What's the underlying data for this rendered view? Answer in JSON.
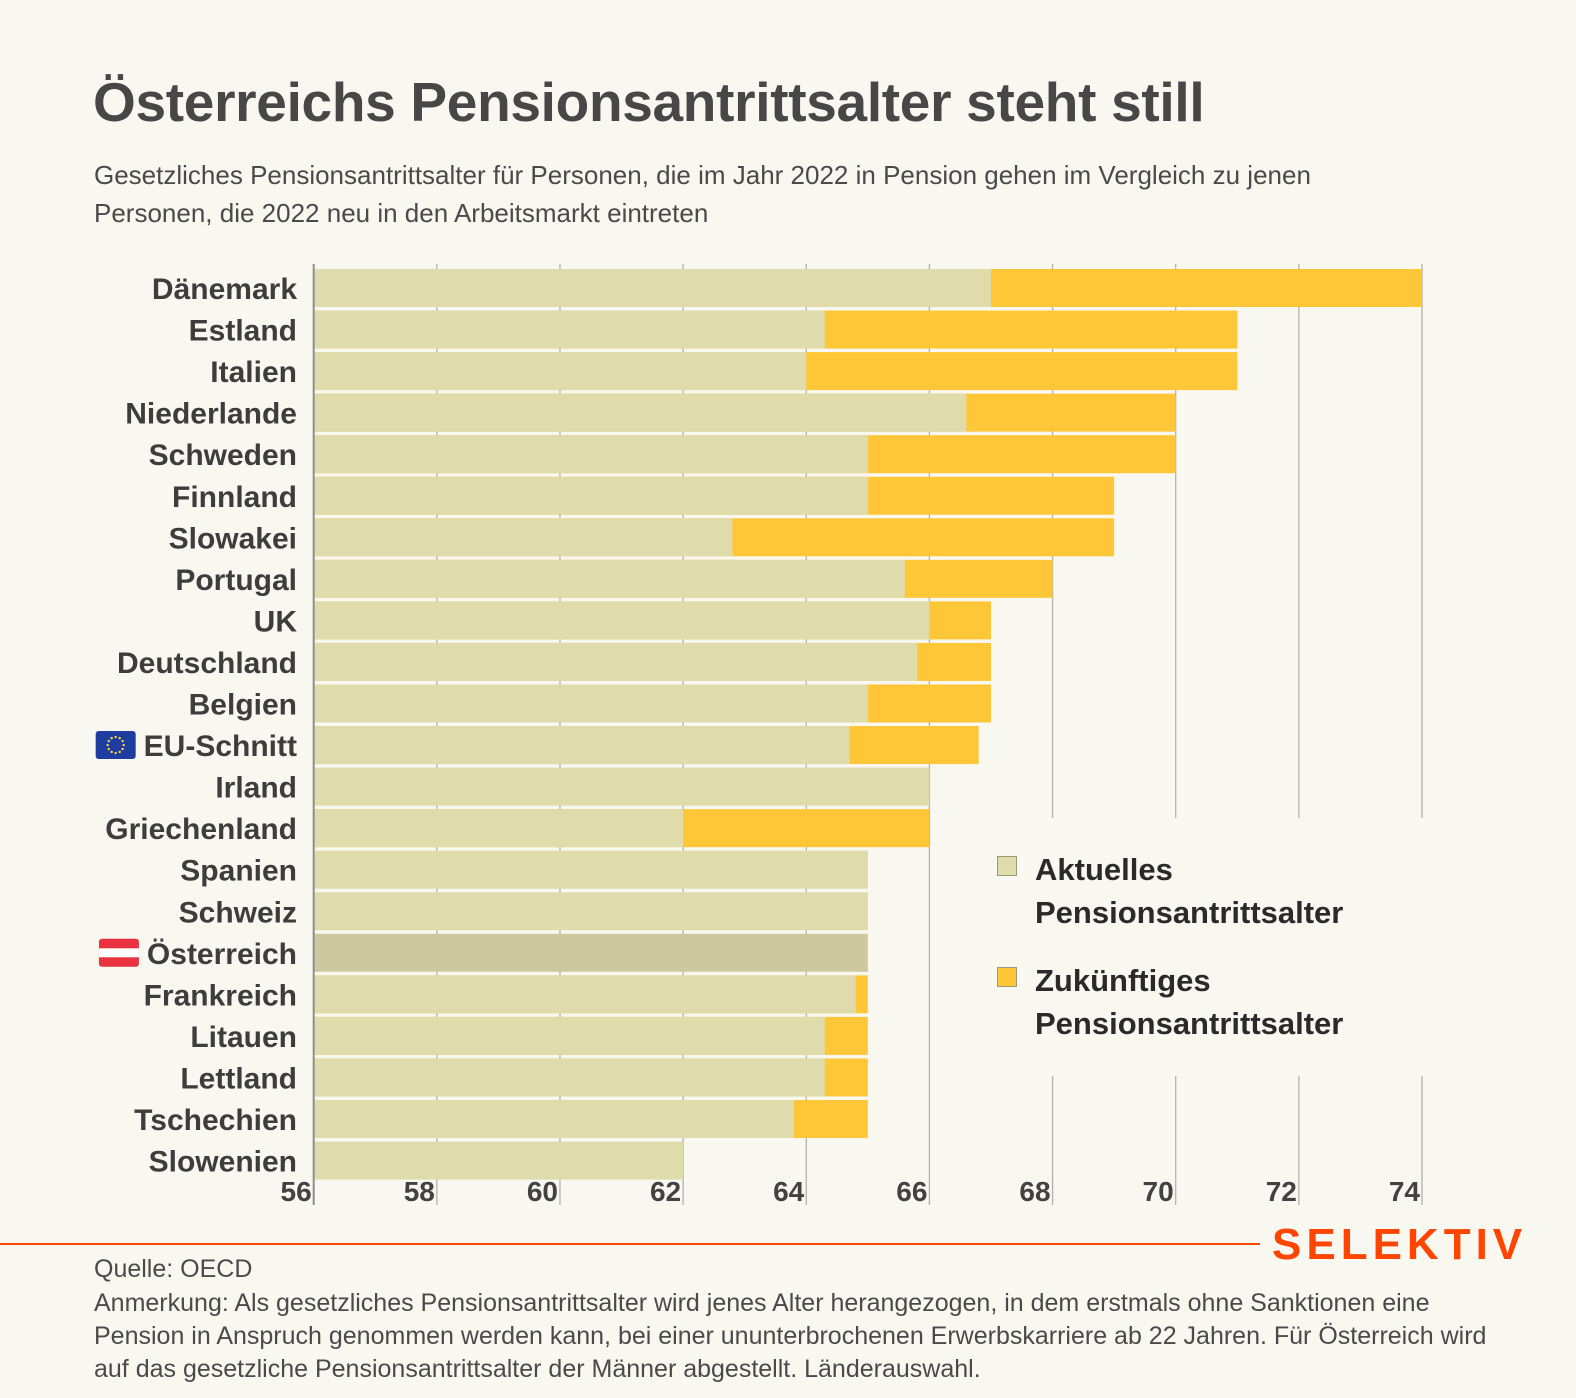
{
  "header": {
    "title": "Österreichs Pensionsantrittsalter steht still",
    "subtitle": "Gesetzliches Pensionsantrittsalter für Personen, die im Jahr 2022 in Pension gehen im Vergleich zu jenen Personen, die 2022 neu in den Arbeitsmarkt eintreten"
  },
  "chart_data": {
    "type": "bar",
    "orientation": "horizontal",
    "stacked": "overlay",
    "title": "Österreichs Pensionsantrittsalter steht still",
    "xlabel": "",
    "ylabel": "",
    "xlim": [
      56,
      74
    ],
    "x_ticks": [
      56,
      58,
      60,
      62,
      64,
      66,
      68,
      70,
      72,
      74
    ],
    "grid": "vertical",
    "legend_position": "bottom-right",
    "categories": [
      "Dänemark",
      "Estland",
      "Italien",
      "Niederlande",
      "Schweden",
      "Finnland",
      "Slowakei",
      "Portugal",
      "UK",
      "Deutschland",
      "Belgien",
      "EU-Schnitt",
      "Irland",
      "Griechenland",
      "Spanien",
      "Schweiz",
      "Österreich",
      "Frankreich",
      "Litauen",
      "Lettland",
      "Tschechien",
      "Slowenien"
    ],
    "flags": {
      "EU-Schnitt": "eu-flag-icon",
      "Österreich": "austria-flag-icon"
    },
    "highlight": "Österreich",
    "series": [
      {
        "name": "Aktuelles Pensionsantrittsalter",
        "color": "#dfdbab",
        "highlight_color": "#cdc89e",
        "values": [
          67.0,
          64.3,
          64.0,
          66.6,
          65.0,
          65.0,
          62.8,
          65.6,
          66.0,
          65.8,
          65.0,
          64.7,
          66.0,
          62.0,
          65.0,
          65.0,
          65.0,
          64.8,
          64.3,
          64.3,
          63.8,
          62.0
        ]
      },
      {
        "name": "Zukünftiges Pensionsantrittsalter",
        "color": "#ffc637",
        "values": [
          74.0,
          71.0,
          71.0,
          70.0,
          70.0,
          69.0,
          69.0,
          68.0,
          67.0,
          67.0,
          67.0,
          66.8,
          66.0,
          66.0,
          65.0,
          65.0,
          65.0,
          65.0,
          65.0,
          65.0,
          65.0,
          62.0
        ]
      }
    ]
  },
  "legend": {
    "current_line1": "Aktuelles",
    "current_line2": "Pensionsantrittsalter",
    "future_line1": "Zukünftiges",
    "future_line2": "Pensionsantrittsalter"
  },
  "footer": {
    "logo": "SELEKTIV",
    "brand_color": "#ff4500",
    "source": "Quelle: OECD",
    "note": "Anmerkung: Als gesetzliches Pensionsantrittsalter wird jenes Alter herangezogen, in dem erstmals ohne Sanktionen eine Pension in Anspruch genommen werden kann, bei einer ununterbrochenen Erwerbskarriere ab 22 Jahren. Für Österreich wird auf das gesetzliche Pensionsantrittsalter der Männer abgestellt. Länderauswahl."
  }
}
